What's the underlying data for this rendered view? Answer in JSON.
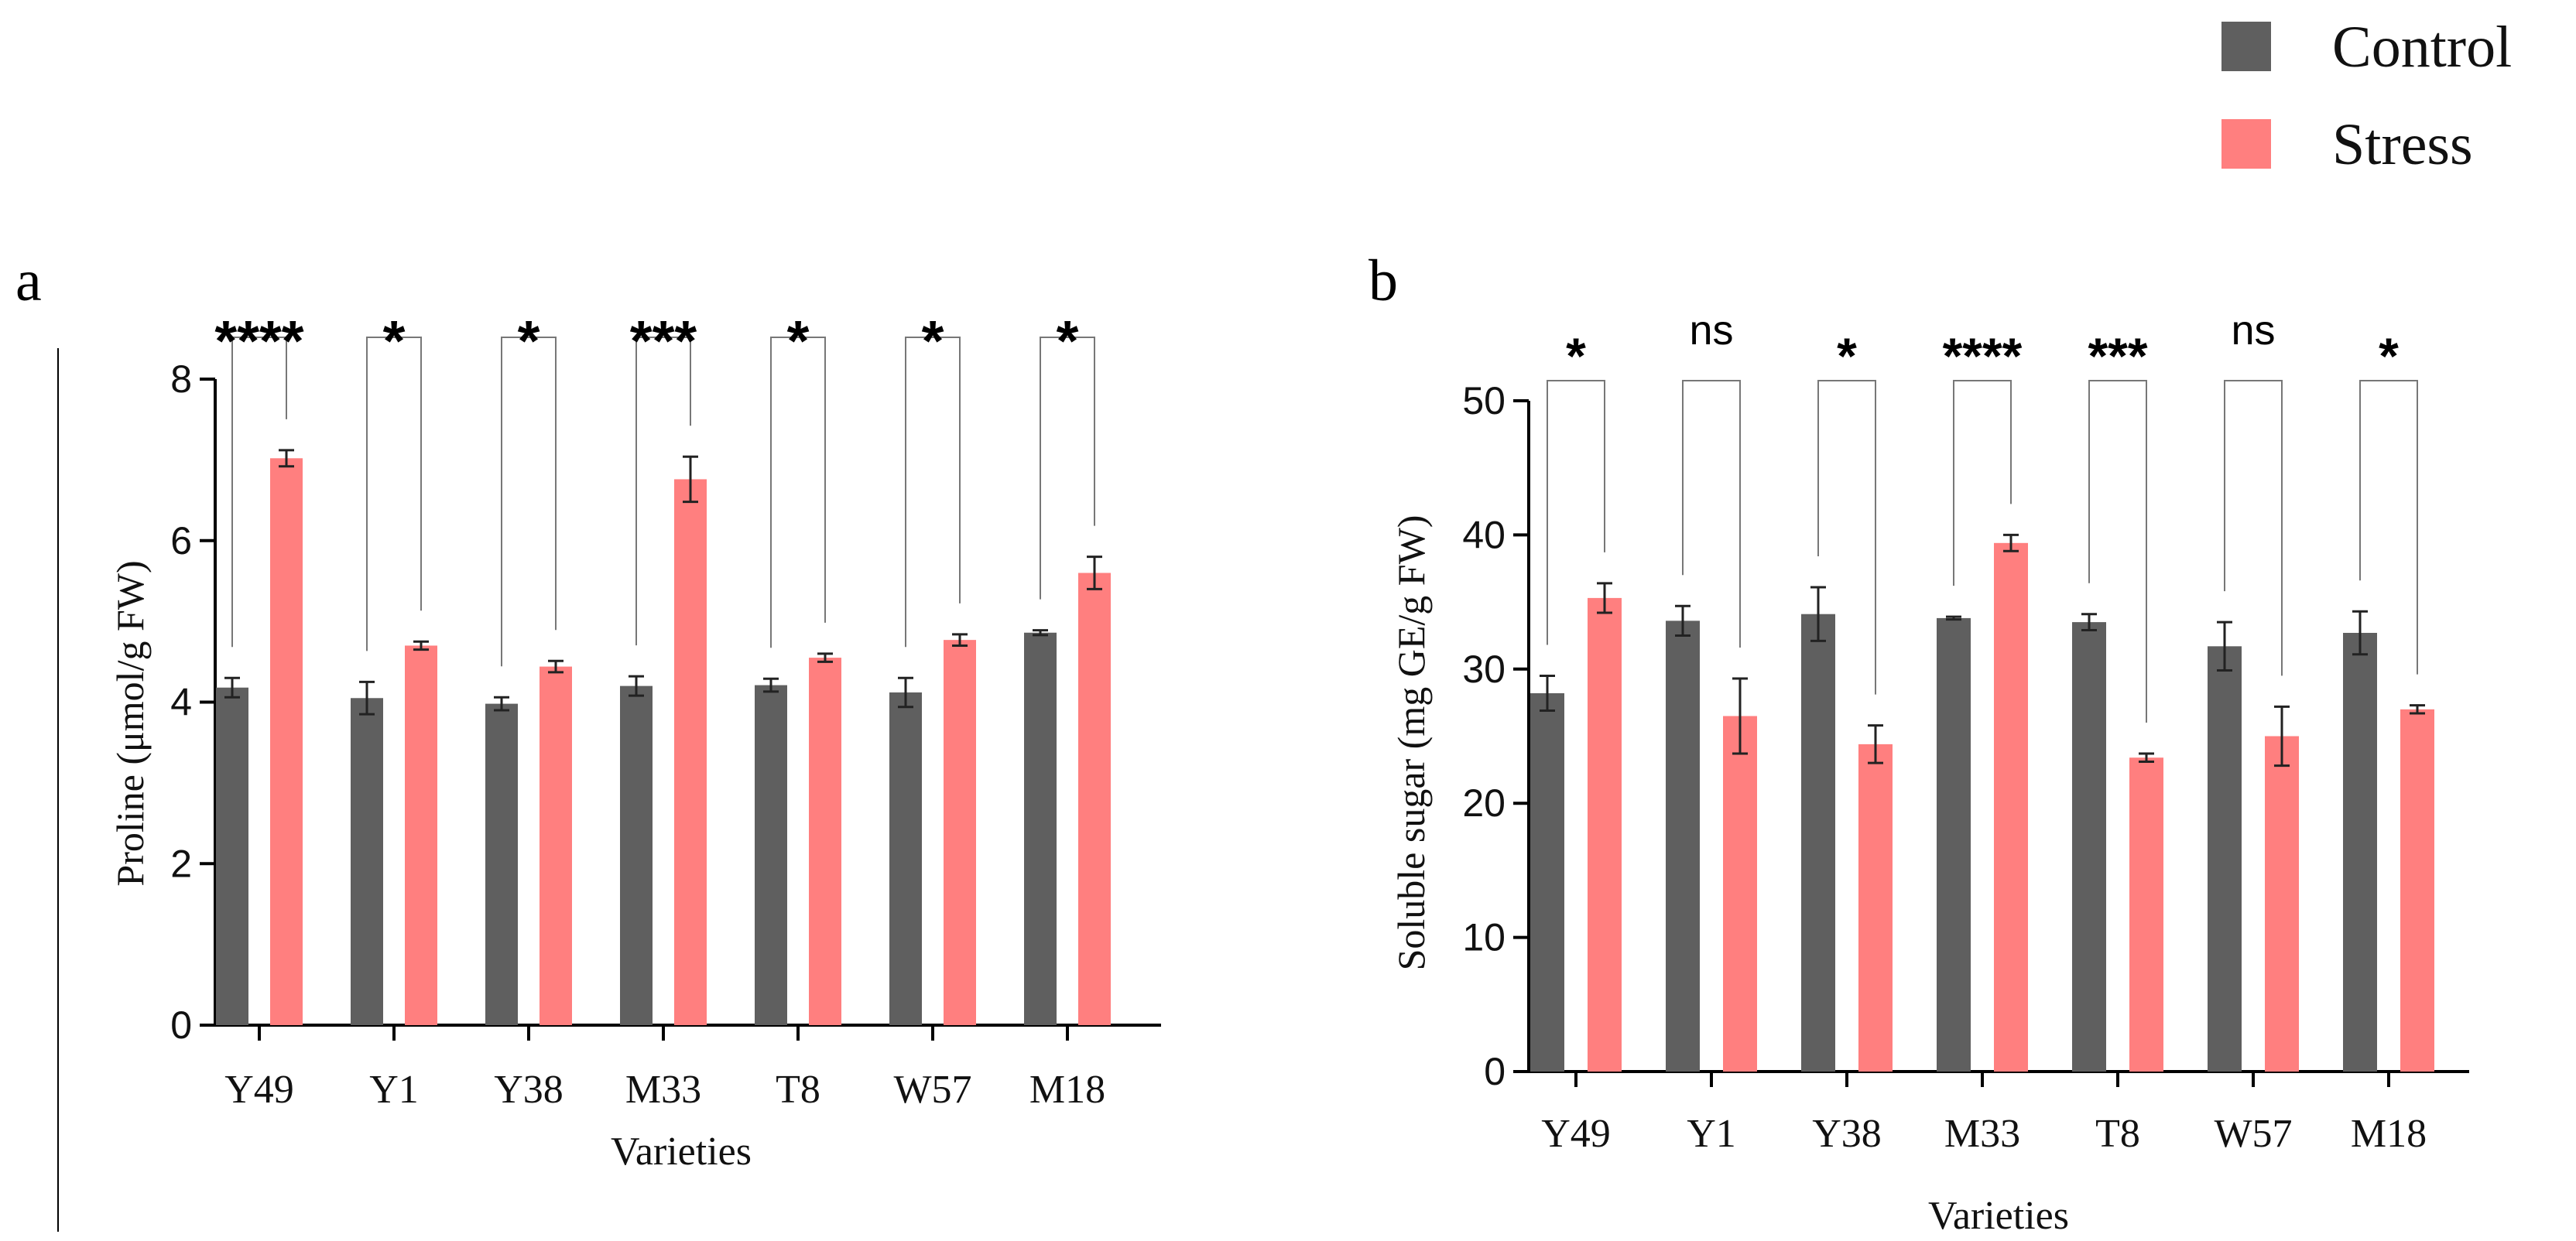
{
  "legend": {
    "items": [
      {
        "label": "Control",
        "color": "#5f5f5f"
      },
      {
        "label": "Stress",
        "color": "#ff7f7f"
      }
    ]
  },
  "chart_data": [
    {
      "panel_label": "a",
      "type": "bar",
      "categories": [
        "Y49",
        "Y1",
        "Y38",
        "M33",
        "T8",
        "W57",
        "M18"
      ],
      "series": [
        {
          "name": "Control",
          "values": [
            4.18,
            4.05,
            3.98,
            4.2,
            4.21,
            4.12,
            4.86
          ],
          "errors": [
            0.12,
            0.2,
            0.08,
            0.12,
            0.08,
            0.18,
            0.03
          ]
        },
        {
          "name": "Stress",
          "values": [
            7.02,
            4.7,
            4.44,
            6.76,
            4.55,
            4.77,
            5.6
          ],
          "errors": [
            0.1,
            0.05,
            0.07,
            0.28,
            0.05,
            0.07,
            0.2
          ]
        }
      ],
      "significance": [
        "****",
        "*",
        "*",
        "***",
        "*",
        "*",
        "*"
      ],
      "xlabel": "Varieties",
      "ylabel": "Proline (μmol/g FW)",
      "ylim": [
        0,
        8
      ],
      "yticks": [
        0,
        2,
        4,
        6,
        8
      ]
    },
    {
      "panel_label": "b",
      "type": "bar",
      "categories": [
        "Y49",
        "Y1",
        "Y38",
        "M33",
        "T8",
        "W57",
        "M18"
      ],
      "series": [
        {
          "name": "Control",
          "values": [
            28.2,
            33.6,
            34.1,
            33.8,
            33.5,
            31.7,
            32.7
          ],
          "errors": [
            1.3,
            1.1,
            2.0,
            0.1,
            0.6,
            1.8,
            1.6
          ]
        },
        {
          "name": "Stress",
          "values": [
            35.3,
            26.5,
            24.4,
            39.4,
            23.4,
            25.0,
            27.0
          ],
          "errors": [
            1.1,
            2.8,
            1.4,
            0.6,
            0.3,
            2.2,
            0.3
          ]
        }
      ],
      "significance": [
        "*",
        "ns",
        "*",
        "****",
        "***",
        "ns",
        "*"
      ],
      "xlabel": "Varieties",
      "ylabel": "Soluble sugar (mg GE/g FW)",
      "ylim": [
        0,
        50
      ],
      "yticks": [
        0,
        10,
        20,
        30,
        40,
        50
      ]
    }
  ]
}
